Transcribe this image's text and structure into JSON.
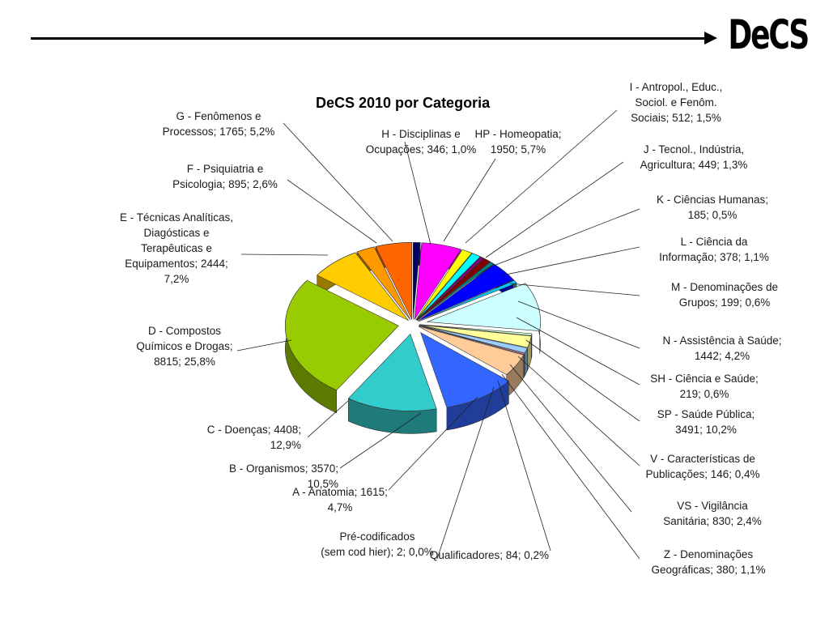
{
  "header": {
    "brand": "DeCS"
  },
  "chart_data": {
    "type": "pie",
    "title": "DeCS 2010 por Categoria",
    "legend": "none",
    "slices": [
      {
        "line1": "H - Disciplinas e",
        "line2": "Ocupações; 346; 1,0%",
        "line3": "",
        "line4": "",
        "category": "H - Disciplinas e Ocupações",
        "value": 346,
        "percent": "1,0%",
        "color": "#000066"
      },
      {
        "line1": "HP - Homeopatia;",
        "line2": "1950; 5,7%",
        "line3": "",
        "line4": "",
        "category": "HP - Homeopatia",
        "value": 1950,
        "percent": "5,7%",
        "color": "#ff00ff"
      },
      {
        "line1": "I - Antropol., Educ.,",
        "line2": "Sociol. e Fenôm.",
        "line3": "Sociais; 512; 1,5%",
        "line4": "",
        "category": "I - Antropol., Educ., Sociol. e Fenôm. Sociais",
        "value": 512,
        "percent": "1,5%",
        "color": "#ffff00"
      },
      {
        "line1": "J - Tecnol., Indústria,",
        "line2": "Agricultura; 449; 1,3%",
        "line3": "",
        "line4": "",
        "category": "J - Tecnol., Indústria, Agricultura",
        "value": 449,
        "percent": "1,3%",
        "color": "#00ffff"
      },
      {
        "line1": "K - Ciências Humanas;",
        "line2": "185; 0,5%",
        "line3": "",
        "line4": "",
        "category": "K - Ciências Humanas",
        "value": 185,
        "percent": "0,5%",
        "color": "#800080"
      },
      {
        "line1": "L - Ciência da",
        "line2": "Informação; 378; 1,1%",
        "line3": "",
        "line4": "",
        "category": "L - Ciência da Informação",
        "value": 378,
        "percent": "1,1%",
        "color": "#800000"
      },
      {
        "line1": "M - Denominações de",
        "line2": "Grupos; 199; 0,6%",
        "line3": "",
        "line4": "",
        "category": "M - Denominações de Grupos",
        "value": 199,
        "percent": "0,6%",
        "color": "#008080"
      },
      {
        "line1": "N - Assistência à Saúde;",
        "line2": "1442; 4,2%",
        "line3": "",
        "line4": "",
        "category": "N - Assistência à Saúde",
        "value": 1442,
        "percent": "4,2%",
        "color": "#0000ff"
      },
      {
        "line1": "SH - Ciência e Saúde;",
        "line2": "219; 0,6%",
        "line3": "",
        "line4": "",
        "category": "SH - Ciência e Saúde",
        "value": 219,
        "percent": "0,6%",
        "color": "#00ccff"
      },
      {
        "line1": "SP - Saúde Pública;",
        "line2": "3491; 10,2%",
        "line3": "",
        "line4": "",
        "category": "SP - Saúde Pública",
        "value": 3491,
        "percent": "10,2%",
        "color": "#ccffff"
      },
      {
        "line1": "V - Características de",
        "line2": "Publicações; 146; 0,4%",
        "line3": "",
        "line4": "",
        "category": "V - Características de Publicações",
        "value": 146,
        "percent": "0,4%",
        "color": "#ccffcc"
      },
      {
        "line1": "VS - Vigilância",
        "line2": "Sanitária; 830; 2,4%",
        "line3": "",
        "line4": "",
        "category": "VS - Vigilância Sanitária",
        "value": 830,
        "percent": "2,4%",
        "color": "#ffff99"
      },
      {
        "line1": "Z - Denominações",
        "line2": "Geográficas; 380; 1,1%",
        "line3": "",
        "line4": "",
        "category": "Z - Denominações Geográficas",
        "value": 380,
        "percent": "1,1%",
        "color": "#99ccff"
      },
      {
        "line1": "Qualificadores; 84; 0,2%",
        "line2": "",
        "line3": "",
        "line4": "",
        "category": "Qualificadores",
        "value": 84,
        "percent": "0,2%",
        "color": "#ff99cc"
      },
      {
        "line1": "Pré-codificados",
        "line2": "(sem cod hier); 2; 0,0%",
        "line3": "",
        "line4": "",
        "category": "Pré-codificados (sem cod hier)",
        "value": 2,
        "percent": "0,0%",
        "color": "#cc99ff"
      },
      {
        "line1": "A - Anatomia; 1615;",
        "line2": "4,7%",
        "line3": "",
        "line4": "",
        "category": "A - Anatomia",
        "value": 1615,
        "percent": "4,7%",
        "color": "#ffcc99"
      },
      {
        "line1": "B - Organismos; 3570;",
        "line2": "10,5%",
        "line3": "",
        "line4": "",
        "category": "B - Organismos",
        "value": 3570,
        "percent": "10,5%",
        "color": "#3366ff"
      },
      {
        "line1": "C - Doenças; 4408;",
        "line2": "12,9%",
        "line3": "",
        "line4": "",
        "category": "C - Doenças",
        "value": 4408,
        "percent": "12,9%",
        "color": "#33cccc"
      },
      {
        "line1": "D - Compostos",
        "line2": "Químicos e Drogas;",
        "line3": "8815; 25,8%",
        "line4": "",
        "category": "D - Compostos Químicos e Drogas",
        "value": 8815,
        "percent": "25,8%",
        "color": "#99cc00"
      },
      {
        "line1": "E - Técnicas Analíticas,",
        "line2": "Diagósticas e",
        "line3": "Terapêuticas e",
        "line4": "Equipamentos; 2444;",
        "line5": "7,2%",
        "category": "E - Técnicas Analíticas, Diagósticas e Terapêuticas e Equipamentos",
        "value": 2444,
        "percent": "7,2%",
        "color": "#ffcc00"
      },
      {
        "line1": "F - Psiquiatria e",
        "line2": "Psicologia; 895; 2,6%",
        "line3": "",
        "line4": "",
        "category": "F - Psiquiatria e Psicologia",
        "value": 895,
        "percent": "2,6%",
        "color": "#ff9900"
      },
      {
        "line1": "G - Fenômenos e",
        "line2": "Processos; 1765; 5,2%",
        "line3": "",
        "line4": "",
        "category": "G - Fenômenos e Processos",
        "value": 1765,
        "percent": "5,2%",
        "color": "#ff6600"
      }
    ]
  }
}
